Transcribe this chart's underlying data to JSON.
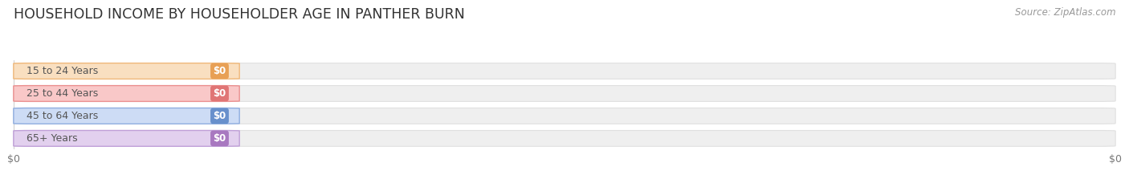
{
  "title": "HOUSEHOLD INCOME BY HOUSEHOLDER AGE IN PANTHER BURN",
  "source": "Source: ZipAtlas.com",
  "categories": [
    "15 to 24 Years",
    "25 to 44 Years",
    "45 to 64 Years",
    "65+ Years"
  ],
  "values": [
    0,
    0,
    0,
    0
  ],
  "pill_face_colors": [
    "#f9dfc0",
    "#f9c8c8",
    "#cddcf5",
    "#e2d0ee"
  ],
  "pill_edge_colors": [
    "#f0b87a",
    "#eb9090",
    "#90aee0",
    "#c0a0d8"
  ],
  "badge_colors": [
    "#e8a055",
    "#e07575",
    "#6890cc",
    "#a878c0"
  ],
  "track_color": "#efefef",
  "track_edge_color": "#e0e0e0",
  "background_color": "#ffffff",
  "title_fontsize": 12.5,
  "source_fontsize": 8.5,
  "label_fontsize": 9,
  "value_fontsize": 8.5,
  "xtick_labels": [
    "$0",
    "$0"
  ],
  "xtick_positions": [
    0.0,
    1.0
  ]
}
